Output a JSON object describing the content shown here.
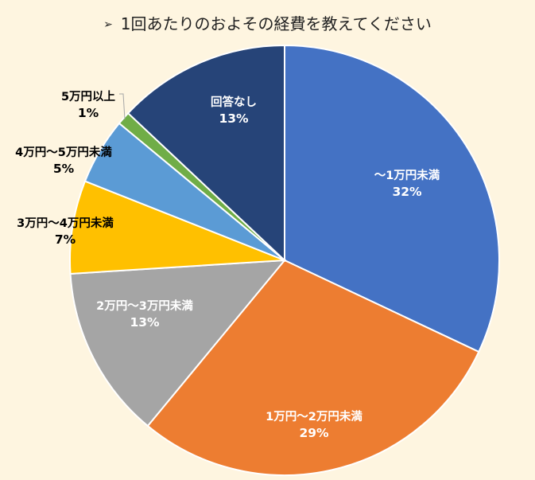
{
  "chart_data": {
    "type": "pie",
    "title": "1回あたりのおよその経費を教えてください",
    "title_marker": "➢",
    "slices": [
      {
        "label": "～1万円未満",
        "value": 32,
        "value_label": "32%",
        "color": "#4472c4"
      },
      {
        "label": "1万円～2万円未満",
        "value": 29,
        "value_label": "29%",
        "color": "#ed7d31"
      },
      {
        "label": "2万円～3万円未満",
        "value": 13,
        "value_label": "13%",
        "color": "#a5a5a5"
      },
      {
        "label": "3万円～4万円未満",
        "value": 7,
        "value_label": "7%",
        "color": "#ffc000"
      },
      {
        "label": "4万円～5万円未満",
        "value": 5,
        "value_label": "5%",
        "color": "#5b9bd5"
      },
      {
        "label": "5万円以上",
        "value": 1,
        "value_label": "1%",
        "color": "#70ad47"
      },
      {
        "label": "回答なし",
        "value": 13,
        "value_label": "13%",
        "color": "#264478"
      }
    ],
    "start_angle": "12 o'clock",
    "direction": "clockwise",
    "legend": "none"
  }
}
